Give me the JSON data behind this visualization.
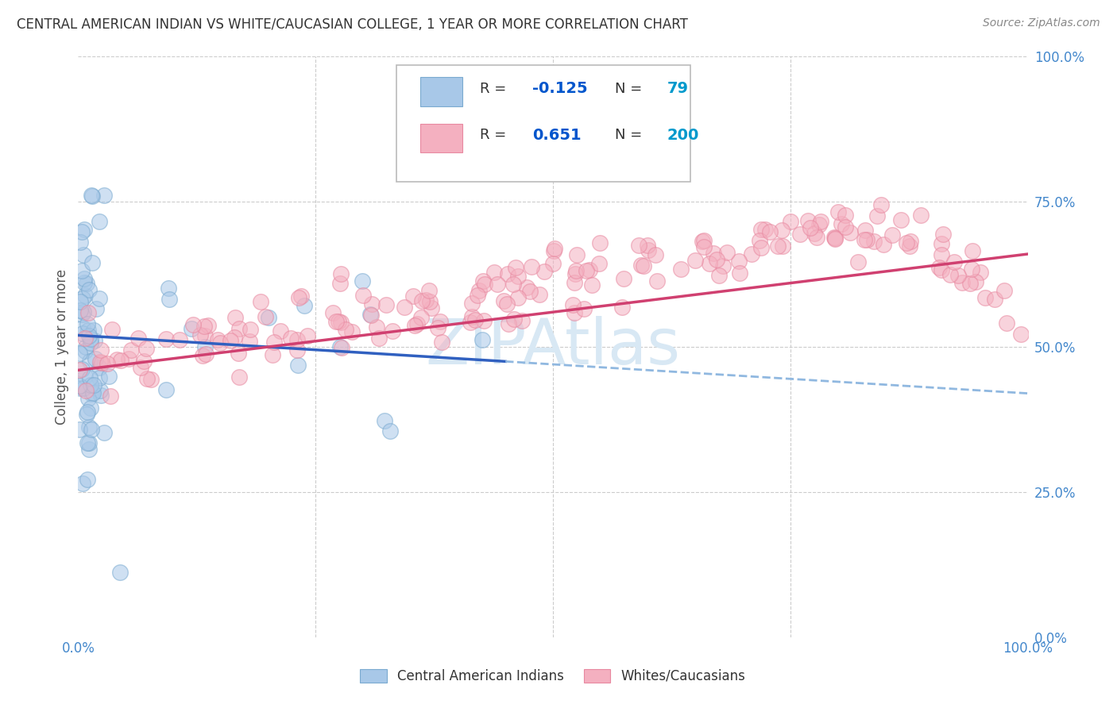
{
  "title": "CENTRAL AMERICAN INDIAN VS WHITE/CAUCASIAN COLLEGE, 1 YEAR OR MORE CORRELATION CHART",
  "source": "Source: ZipAtlas.com",
  "ylabel": "College, 1 year or more",
  "r_blue": -0.125,
  "n_blue": 79,
  "r_pink": 0.651,
  "n_pink": 200,
  "blue_color": "#a8c8e8",
  "pink_color": "#f4b0c0",
  "blue_edge_color": "#7aaad0",
  "pink_edge_color": "#e888a0",
  "blue_line_color": "#3060c0",
  "pink_line_color": "#d04070",
  "dashed_line_color": "#90b8e0",
  "watermark_color": "#d8e8f4",
  "background_color": "#ffffff",
  "grid_color": "#cccccc",
  "axis_label_color": "#4488cc",
  "title_color": "#333333",
  "legend_r_color": "#0055cc",
  "legend_n_color": "#0099cc",
  "legend_label_color": "#333333",
  "source_color": "#888888",
  "ylabel_color": "#555555"
}
